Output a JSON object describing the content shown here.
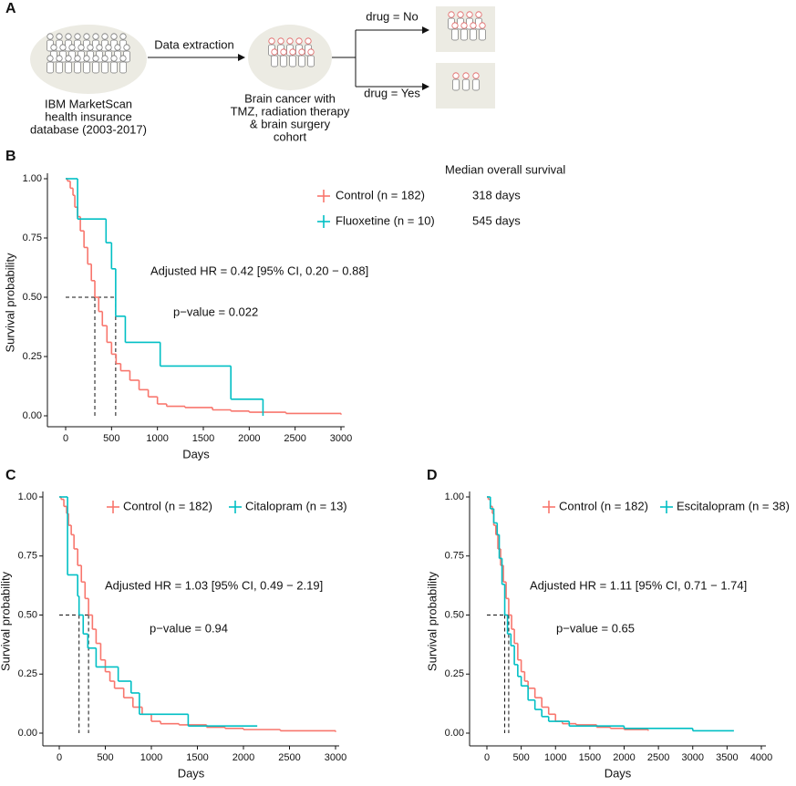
{
  "panel_labels": [
    "A",
    "B",
    "C",
    "D"
  ],
  "diagram": {
    "source": [
      "IBM MarketScan",
      "health insurance",
      "database (2003-2017)"
    ],
    "extraction": "Data extraction",
    "cohort": [
      "Brain cancer with",
      "TMZ, radiation therapy",
      "& brain surgery",
      "cohort"
    ],
    "branch_no": "drug = No",
    "branch_yes": "drug = Yes"
  },
  "chart_data": [
    {
      "type": "km",
      "y_label": "Survival probability",
      "x_label": "Days",
      "xlim": [
        0,
        3000
      ],
      "xticks": [
        0,
        500,
        1000,
        1500,
        2000,
        2500,
        3000
      ],
      "ylim": [
        0,
        1
      ],
      "yticks": [
        {
          "value": 0,
          "label": "0.00"
        },
        {
          "value": 0.25,
          "label": "0.25"
        },
        {
          "value": 0.5,
          "label": "0.50"
        },
        {
          "value": 0.75,
          "label": "0.75"
        },
        {
          "value": 1,
          "label": "1.00"
        }
      ],
      "median_probability": 0.5,
      "legend_title": "Median overall survival",
      "annotations": [
        "Adjusted HR = 0.42 [95% CI, 0.20 − 0.88]",
        "p−value = 0.022"
      ],
      "series": [
        {
          "name": "Control (n = 182)",
          "color": "#f8766d",
          "median": 318,
          "median_label": "318 days",
          "x": [
            0,
            20,
            50,
            80,
            100,
            130,
            160,
            200,
            240,
            280,
            318,
            360,
            400,
            450,
            500,
            550,
            600,
            700,
            800,
            900,
            1000,
            1100,
            1300,
            1600,
            1800,
            2000,
            2400,
            3000
          ],
          "values": [
            1.0,
            0.99,
            0.96,
            0.93,
            0.88,
            0.84,
            0.78,
            0.71,
            0.64,
            0.57,
            0.5,
            0.44,
            0.38,
            0.31,
            0.26,
            0.22,
            0.19,
            0.15,
            0.11,
            0.08,
            0.05,
            0.04,
            0.035,
            0.025,
            0.02,
            0.015,
            0.01,
            0.005
          ]
        },
        {
          "name": "Fluoxetine (n = 10)",
          "color": "#00bfc4",
          "median": 545,
          "median_label": "545 days",
          "x": [
            0,
            130,
            440,
            500,
            545,
            650,
            1030,
            1800,
            2150
          ],
          "values": [
            1.0,
            0.83,
            0.73,
            0.62,
            0.42,
            0.31,
            0.21,
            0.07,
            0.0
          ]
        }
      ]
    },
    {
      "type": "km",
      "y_label": "Survival probability",
      "x_label": "Days",
      "xlim": [
        0,
        3000
      ],
      "xticks": [
        0,
        500,
        1000,
        1500,
        2000,
        2500,
        3000
      ],
      "ylim": [
        0,
        1
      ],
      "yticks": [
        {
          "value": 0,
          "label": "0.00"
        },
        {
          "value": 0.25,
          "label": "0.25"
        },
        {
          "value": 0.5,
          "label": "0.50"
        },
        {
          "value": 0.75,
          "label": "0.75"
        },
        {
          "value": 1,
          "label": "1.00"
        }
      ],
      "median_probability": 0.5,
      "annotations": [
        "Adjusted HR = 1.03 [95% CI, 0.49 − 2.19]",
        "p−value = 0.94"
      ],
      "series": [
        {
          "name": "Control (n = 182)",
          "color": "#f8766d",
          "median": 318,
          "x": [
            0,
            20,
            50,
            80,
            100,
            130,
            160,
            200,
            240,
            280,
            318,
            360,
            400,
            450,
            500,
            550,
            600,
            700,
            800,
            900,
            1000,
            1100,
            1300,
            1600,
            1800,
            2000,
            2400,
            3000
          ],
          "values": [
            1.0,
            0.99,
            0.96,
            0.93,
            0.88,
            0.84,
            0.78,
            0.71,
            0.64,
            0.57,
            0.5,
            0.44,
            0.38,
            0.31,
            0.26,
            0.22,
            0.19,
            0.15,
            0.11,
            0.08,
            0.05,
            0.04,
            0.035,
            0.025,
            0.02,
            0.015,
            0.01,
            0.005
          ]
        },
        {
          "name": "Citalopram (n = 13)",
          "color": "#00bfc4",
          "median": 215,
          "x": [
            0,
            90,
            200,
            215,
            260,
            310,
            400,
            640,
            780,
            870,
            1400,
            2150
          ],
          "values": [
            1.0,
            0.67,
            0.58,
            0.5,
            0.42,
            0.36,
            0.28,
            0.22,
            0.17,
            0.08,
            0.03,
            0.03
          ]
        }
      ]
    },
    {
      "type": "km",
      "y_label": "Survival probability",
      "x_label": "Days",
      "xlim": [
        0,
        4000
      ],
      "xticks": [
        0,
        500,
        1000,
        1500,
        2000,
        2500,
        3000,
        3500,
        4000
      ],
      "ylim": [
        0,
        1
      ],
      "yticks": [
        {
          "value": 0,
          "label": "0.00"
        },
        {
          "value": 0.25,
          "label": "0.25"
        },
        {
          "value": 0.5,
          "label": "0.50"
        },
        {
          "value": 0.75,
          "label": "0.75"
        },
        {
          "value": 1,
          "label": "1.00"
        }
      ],
      "median_probability": 0.5,
      "annotations": [
        "Adjusted HR = 1.11 [95% CI, 0.71 − 1.74]",
        "p−value = 0.65"
      ],
      "series": [
        {
          "name": "Control (n = 182)",
          "color": "#f8766d",
          "median": 318,
          "x": [
            0,
            20,
            50,
            80,
            100,
            130,
            160,
            200,
            240,
            280,
            318,
            360,
            400,
            450,
            500,
            550,
            600,
            700,
            800,
            900,
            1000,
            1100,
            1300,
            1600,
            1800,
            2000,
            2350
          ],
          "values": [
            1.0,
            0.99,
            0.96,
            0.93,
            0.88,
            0.84,
            0.78,
            0.71,
            0.64,
            0.57,
            0.5,
            0.44,
            0.38,
            0.31,
            0.26,
            0.22,
            0.19,
            0.15,
            0.11,
            0.08,
            0.05,
            0.04,
            0.035,
            0.025,
            0.02,
            0.015,
            0.01
          ]
        },
        {
          "name": "Escitalopram (n = 38)",
          "color": "#00bfc4",
          "median": 260,
          "x": [
            0,
            50,
            100,
            150,
            180,
            220,
            260,
            300,
            350,
            400,
            450,
            500,
            600,
            700,
            800,
            900,
            1200,
            2000,
            3000,
            3600
          ],
          "values": [
            1.0,
            0.95,
            0.89,
            0.84,
            0.74,
            0.63,
            0.5,
            0.42,
            0.37,
            0.29,
            0.24,
            0.2,
            0.14,
            0.1,
            0.07,
            0.05,
            0.03,
            0.02,
            0.01,
            0.01
          ]
        }
      ]
    }
  ]
}
